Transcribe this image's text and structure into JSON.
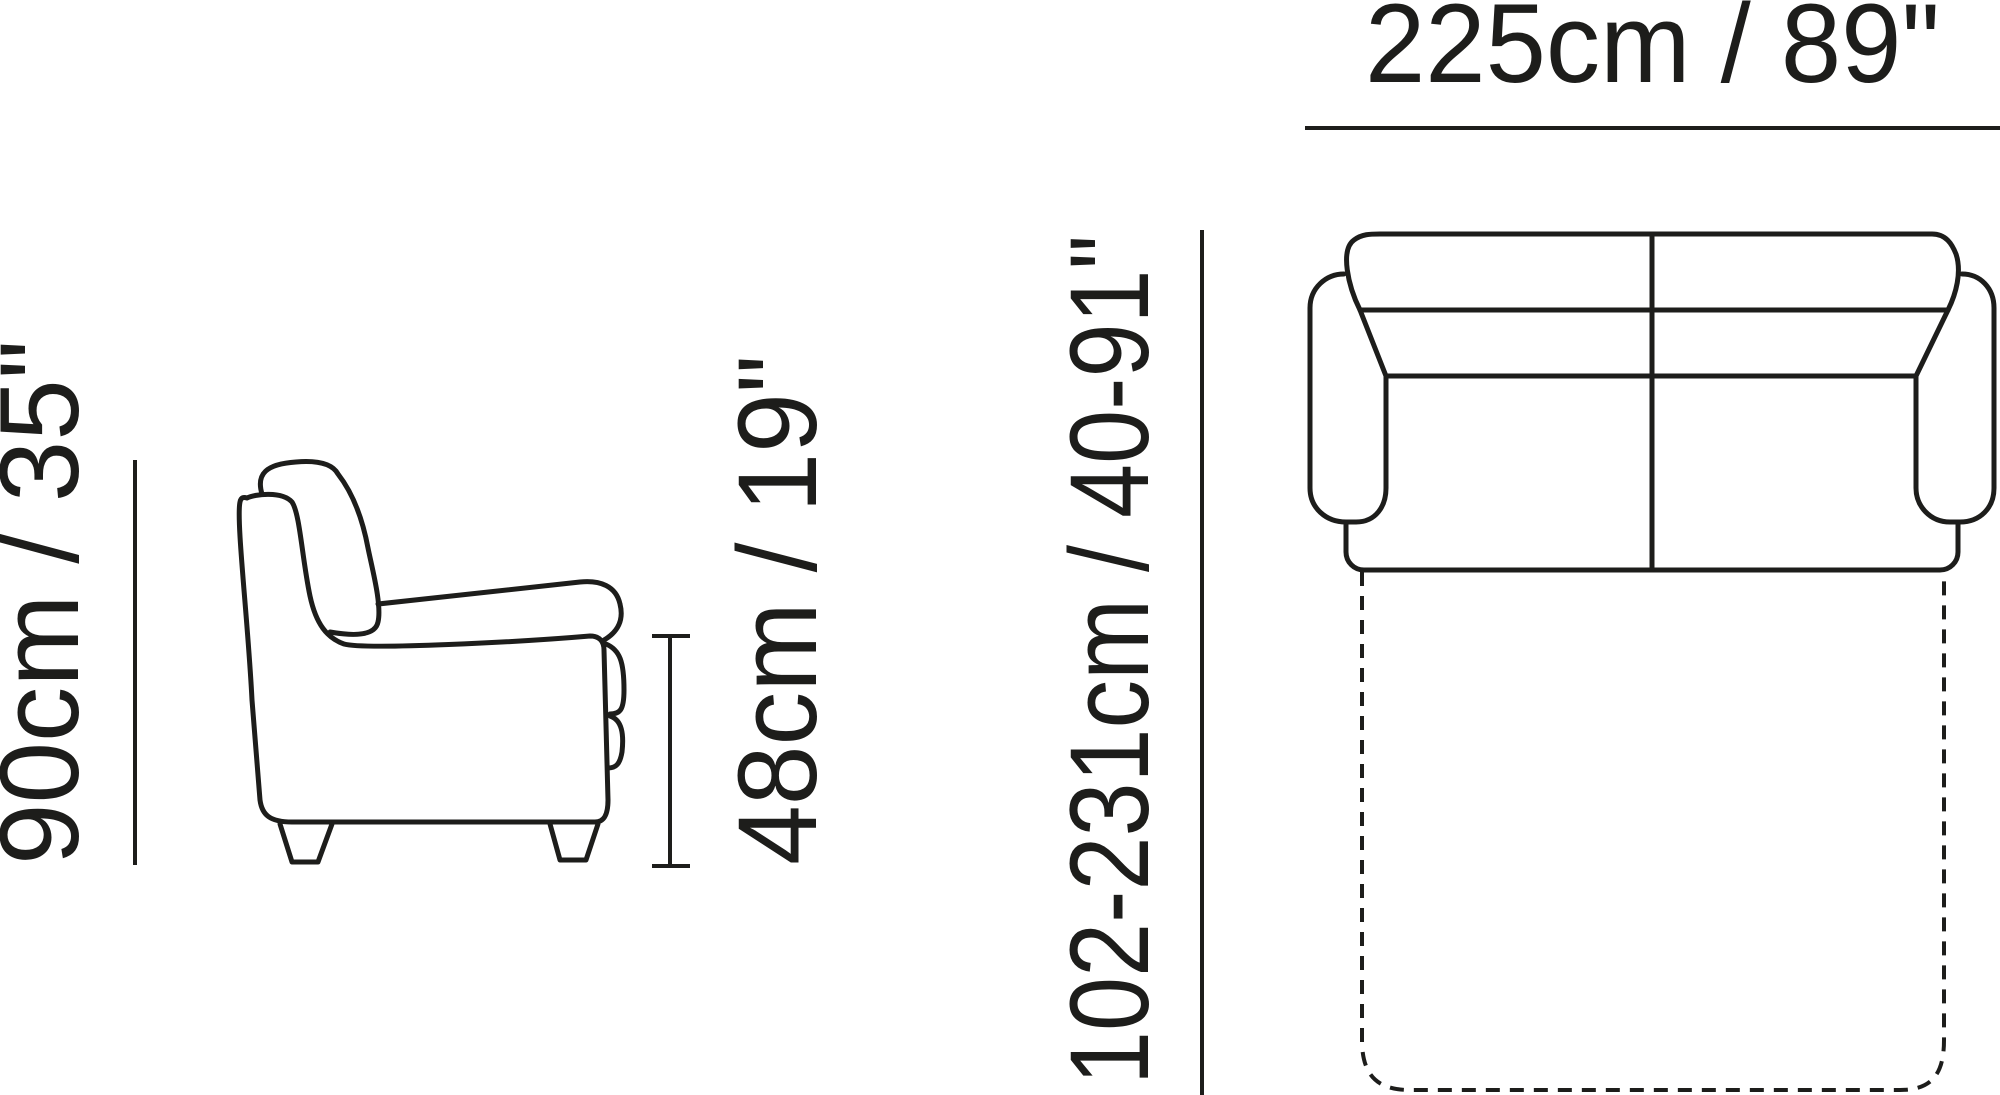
{
  "dimensions": {
    "height": "90cm / 35\"",
    "seat_height": "48cm / 19\"",
    "depth": "102-231cm / 40-91\"",
    "width": "225cm / 89\""
  }
}
